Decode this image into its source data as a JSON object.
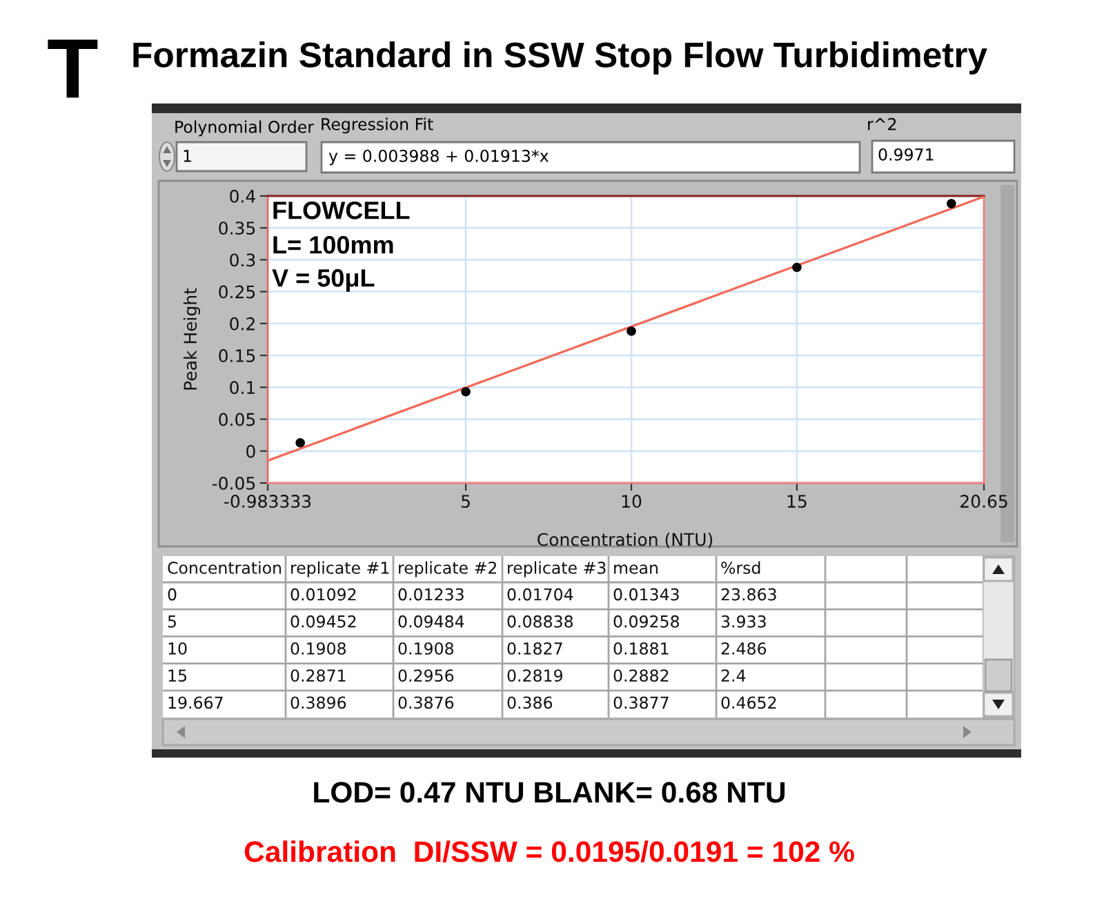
{
  "chart_data": [
    {
      "type": "scatter",
      "title": "Formazin Standard in SSW Stop Flow Turbidimetry",
      "xlabel": "Concentration (NTU)",
      "ylabel": "Peak Height",
      "x": [
        0,
        5,
        10,
        15,
        19.667
      ],
      "series": [
        {
          "color": "#000000",
          "marker": "circle",
          "values": [
            0.013,
            0.093,
            0.188,
            0.288,
            0.388
          ]
        },
        {
          "type": "line",
          "color": "#f26b5b",
          "line_style": "solid",
          "x": [
            -0.983333,
            20.65
          ],
          "values": [
            -0.015,
            0.399
          ]
        }
      ],
      "xlim": [
        -0.983333,
        20.65
      ],
      "xticks": [
        -0.983333,
        5,
        10,
        15,
        20.65
      ],
      "ylim": [
        -0.05,
        0.4
      ],
      "yticks": [
        -0.05,
        0,
        0.05,
        0.1,
        0.15,
        0.2,
        0.25,
        0.3,
        0.35,
        0.4
      ],
      "grid": true,
      "annotations": [
        "T",
        "Polynomial Order",
        "1",
        "Regression Fit",
        "y = 0.003988 + 0.01913*x",
        "r^2",
        "0.9971",
        "FLOWCELL",
        "L= 100mm",
        "V = 50μL"
      ]
    },
    {
      "type": "other",
      "categories": [
        "Concentration",
        "replicate #1",
        "replicate #2",
        "replicate #3",
        "mean",
        "%rsd",
        null,
        null
      ],
      "annotations": [
        "0",
        "0.01092",
        "0.01233",
        "0.01704",
        "0.01343",
        "23.863",
        "5",
        "0.09452",
        "0.09484",
        "0.08838",
        "0.09258",
        "3.933",
        "10",
        "0.1908",
        "0.1908",
        "0.1827",
        "0.1881",
        "2.486",
        "15",
        "0.2871",
        "0.2956",
        "0.2819",
        "0.2882",
        "2.4",
        "19.667",
        "0.3896",
        "0.3876",
        "0.386",
        "0.3877",
        "0.4652"
      ]
    },
    {
      "type": "other",
      "annotations": [
        "LOD= 0.47 NTU BLANK= 0.68 NTU",
        "Calibration  DI/SSW = 0.0195/0.0191 = 102 %"
      ]
    }
  ]
}
